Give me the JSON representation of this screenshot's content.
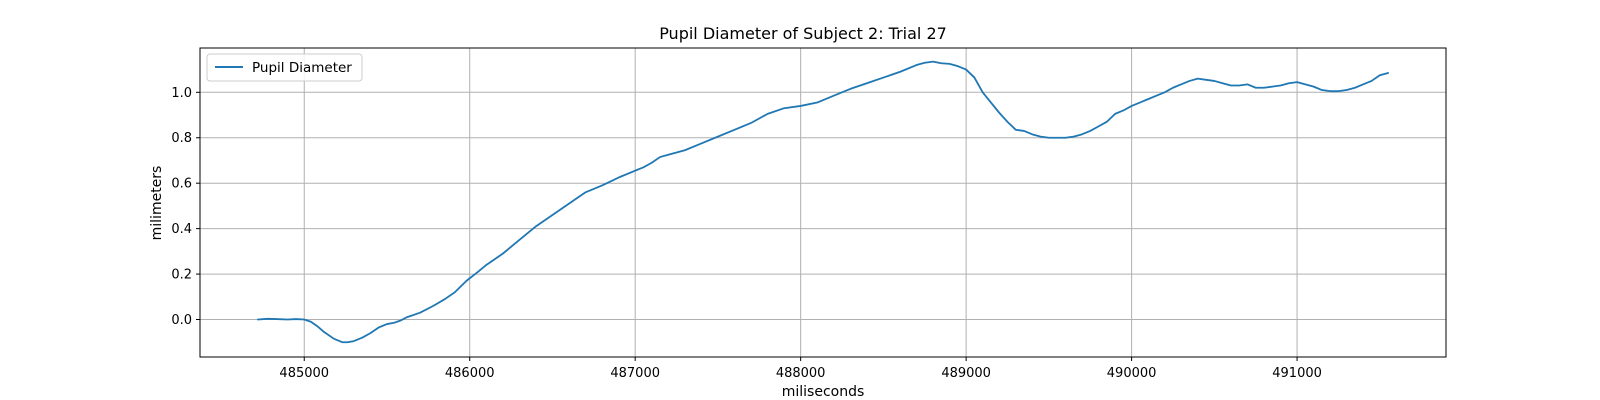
{
  "chart_data": {
    "type": "line",
    "title": "Pupil Diameter of Subject 2: Trial 27",
    "xlabel": "miliseconds",
    "ylabel": "milimeters",
    "xlim": [
      484370,
      491900
    ],
    "ylim": [
      -0.165,
      1.195
    ],
    "xticks": [
      485000,
      486000,
      487000,
      488000,
      489000,
      490000,
      491000
    ],
    "xtick_labels": [
      "485000",
      "486000",
      "487000",
      "488000",
      "489000",
      "490000",
      "491000"
    ],
    "yticks": [
      0.0,
      0.2,
      0.4,
      0.6,
      0.8,
      1.0
    ],
    "ytick_labels": [
      "0.0",
      "0.2",
      "0.4",
      "0.6",
      "0.8",
      "1.0"
    ],
    "grid": true,
    "legend_position": "top-left",
    "colors": {
      "series": "#1f77b4",
      "grid": "#b0b0b0"
    },
    "series": [
      {
        "name": "Pupil Diameter",
        "x": [
          484720,
          484780,
          484830,
          484900,
          484950,
          485000,
          485040,
          485080,
          485120,
          485180,
          485230,
          485260,
          485300,
          485350,
          485400,
          485450,
          485500,
          485540,
          485580,
          485620,
          485700,
          485780,
          485850,
          485910,
          485980,
          486050,
          486100,
          486200,
          486300,
          486400,
          486500,
          486600,
          486700,
          486800,
          486900,
          487000,
          487050,
          487100,
          487150,
          487200,
          487300,
          487400,
          487500,
          487600,
          487700,
          487800,
          487900,
          488000,
          488100,
          488200,
          488300,
          488400,
          488500,
          488600,
          488700,
          488750,
          488800,
          488850,
          488900,
          488950,
          489000,
          489050,
          489100,
          489150,
          489200,
          489250,
          489300,
          489350,
          489400,
          489450,
          489500,
          489550,
          489600,
          489650,
          489700,
          489750,
          489800,
          489850,
          489900,
          489950,
          490000,
          490050,
          490100,
          490150,
          490200,
          490250,
          490300,
          490350,
          490400,
          490450,
          490500,
          490550,
          490600,
          490650,
          490700,
          490750,
          490800,
          490850,
          490900,
          490950,
          491000,
          491050,
          491100,
          491150,
          491200,
          491250,
          491300,
          491350,
          491400,
          491450,
          491500,
          491550
        ],
        "y": [
          0.0,
          0.003,
          0.002,
          0.0,
          0.002,
          0.0,
          -0.01,
          -0.03,
          -0.055,
          -0.085,
          -0.1,
          -0.1,
          -0.095,
          -0.08,
          -0.06,
          -0.035,
          -0.02,
          -0.015,
          -0.005,
          0.01,
          0.03,
          0.06,
          0.09,
          0.12,
          0.17,
          0.21,
          0.24,
          0.29,
          0.35,
          0.41,
          0.46,
          0.51,
          0.56,
          0.59,
          0.625,
          0.655,
          0.67,
          0.69,
          0.715,
          0.725,
          0.745,
          0.775,
          0.805,
          0.835,
          0.865,
          0.905,
          0.93,
          0.94,
          0.955,
          0.985,
          1.015,
          1.04,
          1.065,
          1.09,
          1.12,
          1.13,
          1.135,
          1.128,
          1.125,
          1.115,
          1.1,
          1.065,
          1.0,
          0.955,
          0.91,
          0.87,
          0.835,
          0.83,
          0.815,
          0.805,
          0.8,
          0.8,
          0.8,
          0.805,
          0.815,
          0.83,
          0.85,
          0.87,
          0.905,
          0.92,
          0.94,
          0.955,
          0.97,
          0.985,
          1.0,
          1.02,
          1.035,
          1.05,
          1.06,
          1.055,
          1.05,
          1.04,
          1.03,
          1.03,
          1.035,
          1.02,
          1.02,
          1.025,
          1.03,
          1.04,
          1.045,
          1.035,
          1.025,
          1.01,
          1.005,
          1.005,
          1.01,
          1.02,
          1.035,
          1.05,
          1.075,
          1.085
        ]
      }
    ]
  }
}
